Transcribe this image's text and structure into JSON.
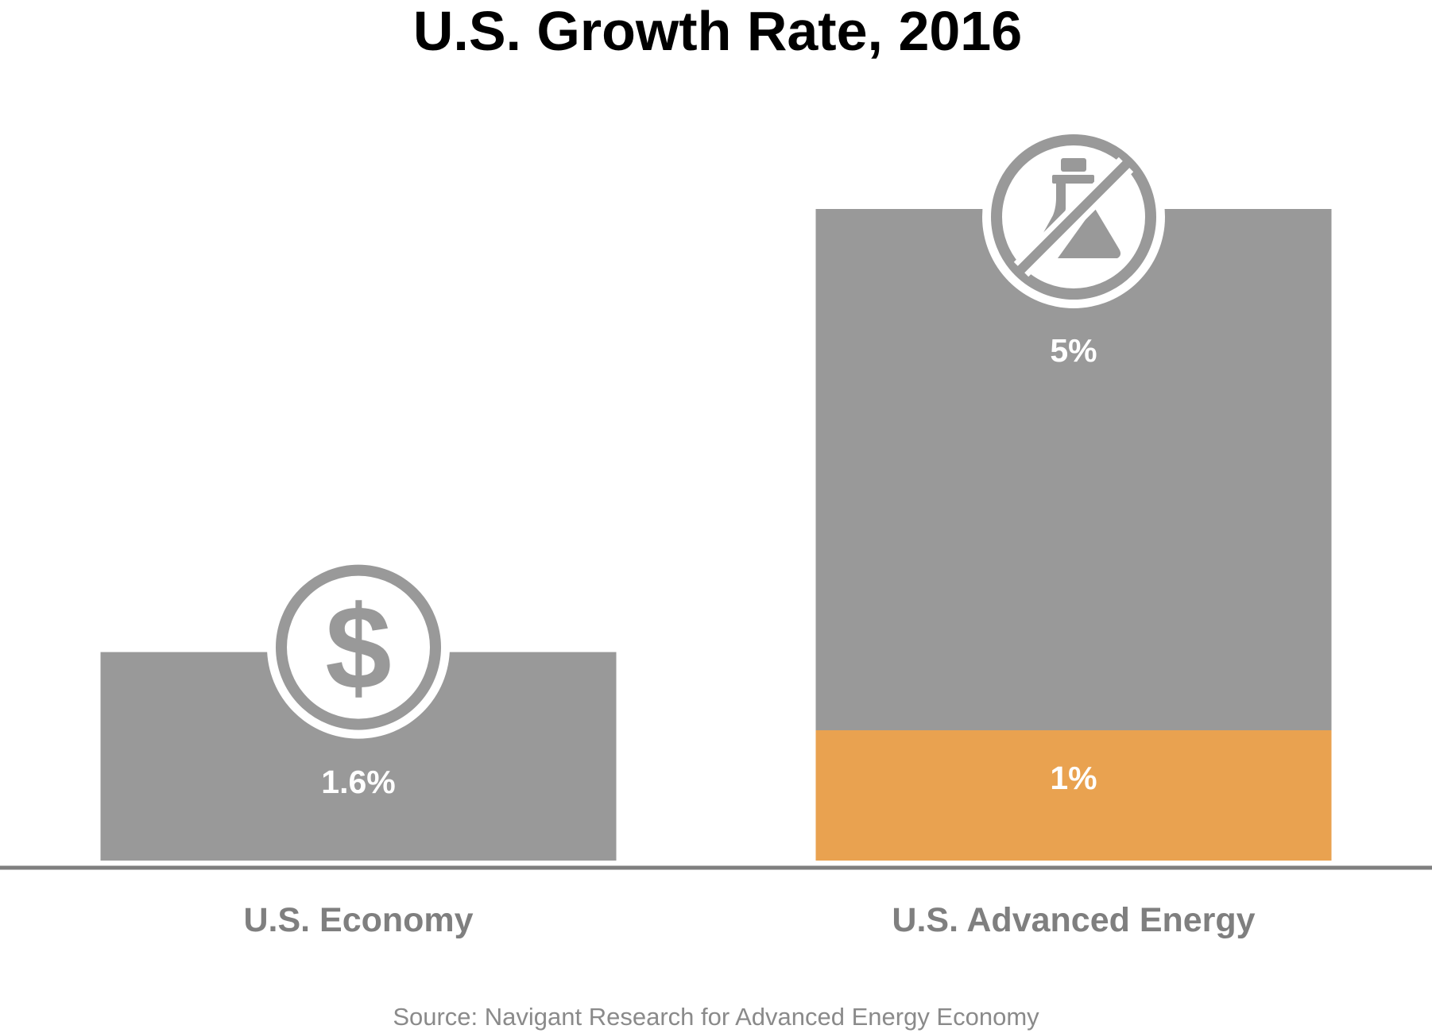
{
  "chart_data": {
    "type": "bar",
    "title": "U.S. Growth Rate, 2016",
    "xlabel": "",
    "ylabel": "",
    "categories": [
      "U.S. Economy",
      "U.S. Advanced Energy"
    ],
    "series": [
      {
        "name": "Growth rate",
        "values": [
          1.6,
          5
        ],
        "labels": [
          "1.6%",
          "5%"
        ],
        "color": "#999999"
      },
      {
        "name": "Highlighted segment",
        "values": [
          null,
          1
        ],
        "labels": [
          null,
          "1%"
        ],
        "color": "#E9A250"
      }
    ],
    "ylim": [
      0,
      5
    ],
    "grid": false,
    "axis_line_color": "#7F7F7F",
    "icons": [
      "dollar-coin-icon",
      "no-fossil-fuel-flask-icon"
    ],
    "source": "Source: Navigant Research for Advanced Energy Economy"
  }
}
